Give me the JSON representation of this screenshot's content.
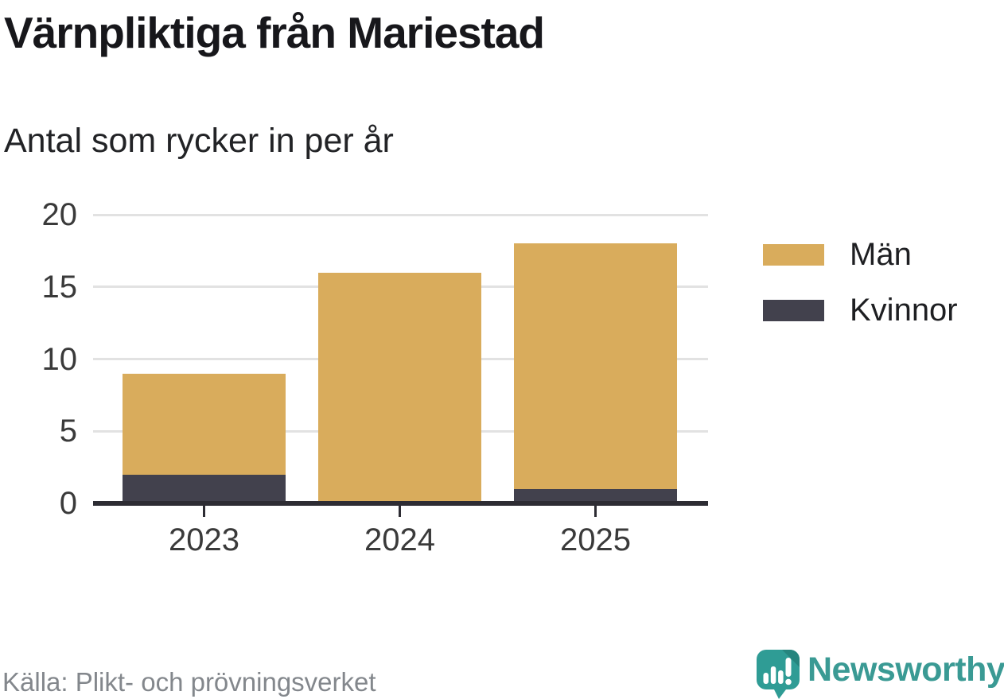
{
  "title": "Värnpliktiga från Mariestad",
  "subtitle": "Antal som rycker in per år",
  "source": "Källa: Plikt- och prövningsverket",
  "brand": {
    "name": "Newsworthy",
    "text_color": "#3A9A94",
    "icon_color": "#2F9C95"
  },
  "colors": {
    "men": "#D9AC5C",
    "women": "#42414D",
    "axis_line": "#2D2C33",
    "gridline": "#E2E2E2",
    "tick_label": "#3A3A3A",
    "title_text": "#17171B",
    "source_text": "#83878C"
  },
  "chart_data": {
    "type": "bar",
    "stacked": true,
    "title": "Värnpliktiga från Mariestad",
    "subtitle": "Antal som rycker in per år",
    "categories": [
      "2023",
      "2024",
      "2025"
    ],
    "series": [
      {
        "name": "Kvinnor",
        "color": "#42414D",
        "values": [
          2,
          0,
          1
        ]
      },
      {
        "name": "Män",
        "color": "#D9AC5C",
        "values": [
          7,
          16,
          17
        ]
      }
    ],
    "stack_order": "bottom-to-top",
    "totals": [
      9,
      16,
      18
    ],
    "xlabel": "",
    "ylabel": "",
    "ylim": [
      0,
      20
    ],
    "yticks": [
      0,
      5,
      10,
      15,
      20
    ],
    "grid": "horizontal",
    "legend": [
      "Män",
      "Kvinnor"
    ],
    "legend_position": "right"
  }
}
